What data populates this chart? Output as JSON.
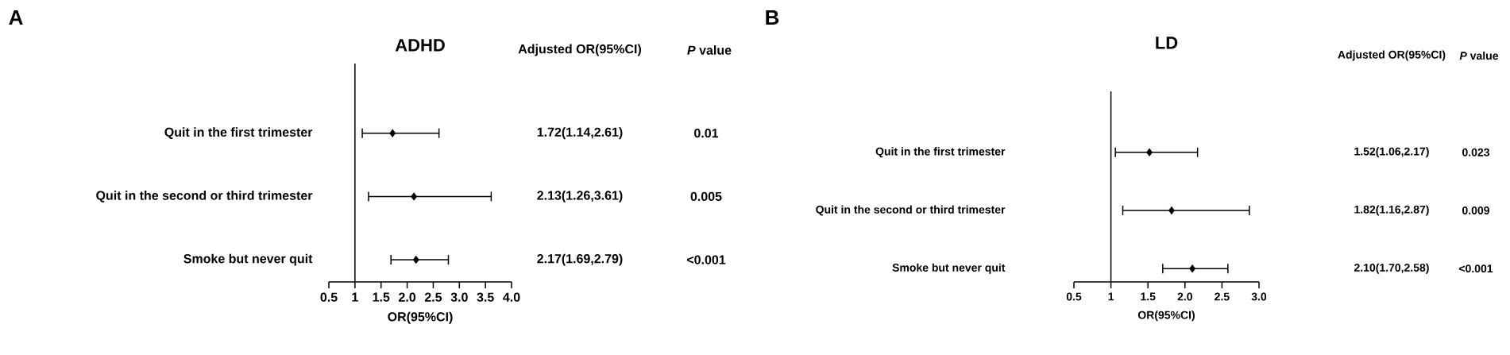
{
  "chart_data": [
    {
      "type": "scatter",
      "title": "ADHD",
      "xlabel": "OR(95%CI)",
      "orientation": "horizontal",
      "marker": "diamond",
      "color": "#000000",
      "categories": [
        "Quit in the first trimester",
        "Quit in the second or third trimester",
        "Smoke but never quit"
      ],
      "values": [
        1.72,
        2.13,
        2.17
      ],
      "errors": [
        [
          1.14,
          2.61
        ],
        [
          1.26,
          3.61
        ],
        [
          1.69,
          2.79
        ]
      ],
      "value_labels": [
        "1.72(1.14,2.61)",
        "2.13(1.26,3.61)",
        "2.17(1.69,2.79)"
      ],
      "xlim": [
        0.5,
        4.0
      ],
      "xticks": [
        0.5,
        1,
        1.5,
        {
          "value": 2,
          "label": "2.0"
        },
        2.5,
        {
          "value": 3,
          "label": "3.0"
        },
        3.5,
        {
          "value": 4,
          "label": "4.0"
        }
      ],
      "ref_lines": [
        {
          "axis": "x",
          "value": 1
        }
      ],
      "annotations": [
        "A",
        "Adjusted OR(95%CI)",
        "*P* value",
        "0.01",
        "0.005",
        "<0.001"
      ]
    },
    {
      "type": "scatter",
      "title": "LD",
      "xlabel": "OR(95%CI)",
      "orientation": "horizontal",
      "marker": "diamond",
      "color": "#000000",
      "categories": [
        "Quit in the first trimester",
        "Quit in the second or third trimester",
        "Smoke but never quit"
      ],
      "values": [
        1.52,
        1.82,
        2.1
      ],
      "errors": [
        [
          1.06,
          2.17
        ],
        [
          1.16,
          2.87
        ],
        [
          1.7,
          2.58
        ]
      ],
      "value_labels": [
        "1.52(1.06,2.17)",
        "1.82(1.16,2.87)",
        "2.10(1.70,2.58)"
      ],
      "xlim": [
        0.5,
        3.0
      ],
      "xticks": [
        0.5,
        1,
        1.5,
        {
          "value": 2,
          "label": "2.0"
        },
        2.5,
        {
          "value": 3,
          "label": "3.0"
        }
      ],
      "ref_lines": [
        {
          "axis": "x",
          "value": 1
        }
      ],
      "annotations": [
        "B",
        "Adjusted OR(95%CI)",
        "*P* value",
        "0.023",
        "0.009",
        "<0.001"
      ]
    }
  ]
}
